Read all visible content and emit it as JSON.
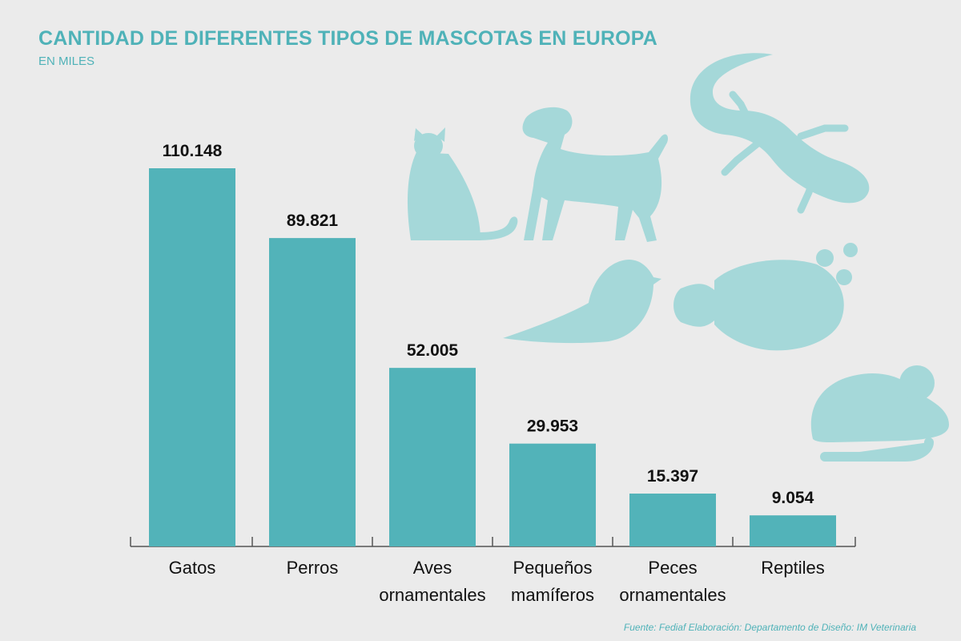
{
  "header": {
    "title": "CANTIDAD DE DIFERENTES TIPOS DE MASCOTAS EN EUROPA",
    "subtitle": "EN MILES"
  },
  "footer": {
    "source": "Fuente: Fediaf   Elaboración: Departamento de Diseño: IM Veterinaria"
  },
  "colors": {
    "bar": "#52b3b9",
    "icon": "#a5d8d9",
    "title": "#4fb2b8",
    "background": "#ebebeb"
  },
  "icons": [
    "cat-icon",
    "dog-icon",
    "lizard-icon",
    "bird-icon",
    "fish-icon",
    "mouse-icon"
  ],
  "chart_data": {
    "type": "bar",
    "title": "CANTIDAD DE DIFERENTES TIPOS DE MASCOTAS EN EUROPA",
    "subtitle": "EN MILES",
    "categories": [
      [
        "Gatos"
      ],
      [
        "Perros"
      ],
      [
        "Aves",
        "ornamentales"
      ],
      [
        "Pequeños",
        "mamíferos"
      ],
      [
        "Peces",
        "ornamentales"
      ],
      [
        "Reptiles"
      ]
    ],
    "values": [
      110148,
      89821,
      52005,
      29953,
      15397,
      9054
    ],
    "value_labels": [
      "110.148",
      "89.821",
      "52.005",
      "29.953",
      "15.397",
      "9.054"
    ],
    "ylim": [
      0,
      110148
    ],
    "grid": false,
    "legend": "none"
  }
}
